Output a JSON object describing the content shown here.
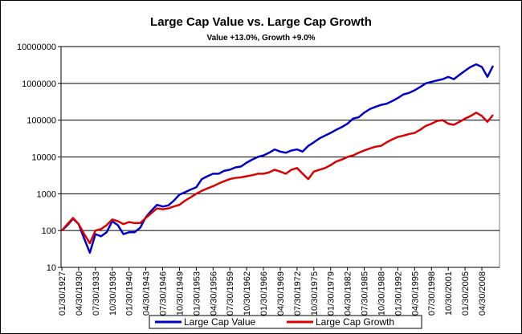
{
  "chart_data": {
    "type": "line",
    "title": "Large Cap Value vs. Large Cap Growth",
    "subtitle": "Value +13.0%, Growth +9.0%",
    "categories": [
      "01/30/1927",
      null,
      null,
      "04/30/1930",
      null,
      null,
      "07/30/1933",
      null,
      null,
      "10/30/1936",
      null,
      null,
      "01/30/1940",
      null,
      null,
      "04/30/1943",
      null,
      null,
      "07/30/1946",
      null,
      null,
      "10/30/1949",
      null,
      null,
      "01/30/1953",
      null,
      null,
      "04/30/1956",
      null,
      null,
      "07/30/1959",
      null,
      null,
      "10/30/1962",
      null,
      null,
      "01/30/1966",
      null,
      null,
      "04/30/1969",
      null,
      null,
      "07/30/1972",
      null,
      null,
      "10/30/1975",
      null,
      null,
      "01/30/1979",
      null,
      null,
      "04/30/1982",
      null,
      null,
      "07/30/1985",
      null,
      null,
      "10/30/1988",
      null,
      null,
      "01/30/1992",
      null,
      null,
      "04/30/1995",
      null,
      null,
      "07/30/1998",
      null,
      null,
      "10/30/2001",
      null,
      null,
      "01/30/2005",
      null,
      null,
      "04/30/2008",
      null,
      null
    ],
    "series": [
      {
        "name": "Large Cap Value",
        "color": "#0000cc",
        "values": [
          100,
          140,
          210,
          150,
          60,
          25,
          80,
          70,
          90,
          180,
          140,
          80,
          90,
          90,
          120,
          230,
          350,
          500,
          450,
          480,
          650,
          950,
          1100,
          1300,
          1500,
          2500,
          3000,
          3500,
          3500,
          4200,
          4500,
          5200,
          5500,
          7000,
          8500,
          10000,
          11000,
          13000,
          16000,
          14000,
          13000,
          15000,
          16000,
          14000,
          20000,
          25000,
          32000,
          38000,
          45000,
          55000,
          65000,
          80000,
          110000,
          120000,
          160000,
          200000,
          230000,
          260000,
          280000,
          330000,
          400000,
          500000,
          550000,
          650000,
          800000,
          1000000,
          1100000,
          1200000,
          1300000,
          1500000,
          1300000,
          1700000,
          2200000,
          2800000,
          3300000,
          2800000,
          1500000,
          3000000
        ]
      },
      {
        "name": "Large Cap Growth",
        "color": "#dd0000",
        "values": [
          100,
          150,
          220,
          150,
          80,
          45,
          100,
          110,
          140,
          200,
          180,
          150,
          170,
          160,
          160,
          220,
          300,
          400,
          380,
          400,
          450,
          500,
          650,
          800,
          1000,
          1200,
          1400,
          1600,
          1900,
          2200,
          2500,
          2700,
          2800,
          3000,
          3200,
          3500,
          3500,
          3800,
          4500,
          4000,
          3500,
          4500,
          5000,
          3500,
          2500,
          4000,
          4500,
          5000,
          6000,
          7500,
          8500,
          10000,
          11000,
          13000,
          15000,
          17000,
          19000,
          20000,
          25000,
          30000,
          35000,
          38000,
          42000,
          45000,
          55000,
          70000,
          80000,
          95000,
          100000,
          80000,
          75000,
          90000,
          110000,
          130000,
          160000,
          130000,
          90000,
          140000
        ]
      }
    ],
    "ylim": [
      10,
      10000000
    ],
    "yticks": [
      10,
      100,
      1000,
      10000,
      100000,
      1000000,
      10000000
    ],
    "log_scale": true,
    "grid": true,
    "legend": "bottom"
  }
}
